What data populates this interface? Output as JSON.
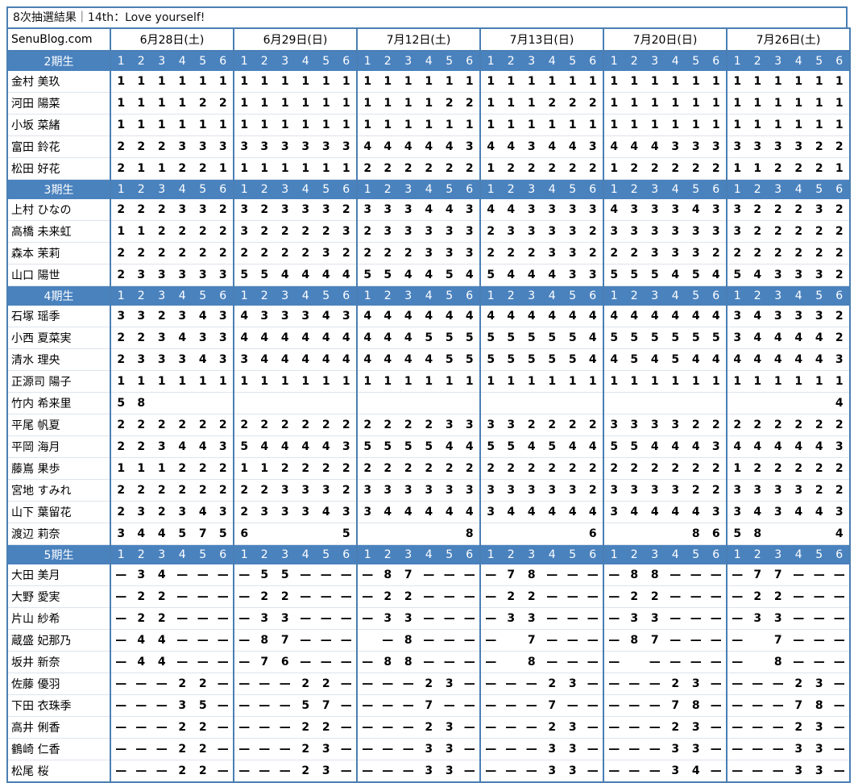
{
  "title": "8次抽選結果｜14th：Love yourself!",
  "site": "SenuBlog.com",
  "dates": [
    "6月28日(土)",
    "6月29日(日)",
    "7月12日(土)",
    "7月13日(日)",
    "7月20日(日)",
    "7月26日(土)"
  ],
  "part_labels": [
    "1",
    "2",
    "3",
    "4",
    "5",
    "6"
  ],
  "highlight_value": "8",
  "groups": [
    {
      "label": "2期生",
      "members": [
        {
          "name": "金村 美玖",
          "v": "111111 111111 111111 111111 111111 111111"
        },
        {
          "name": "河田 陽菜",
          "v": "111122 111111 111122 111222 111111 111111"
        },
        {
          "name": "小坂 菜緒",
          "v": "111111 111111 111111 111111 111111 111111"
        },
        {
          "name": "富田 鈴花",
          "v": "222333 333333 444443 443443 444333 333322"
        },
        {
          "name": "松田 好花",
          "v": "211221 111111 222222 122222 122222 112221"
        }
      ]
    },
    {
      "label": "3期生",
      "members": [
        {
          "name": "上村 ひなの",
          "v": "222332 323332 333443 443333 433343 322232"
        },
        {
          "name": "高橋 未来虹",
          "v": "112222 322223 233333 233332 333333 322222"
        },
        {
          "name": "森本 茉莉",
          "v": "222222 222232 222333 222332 223332 222222"
        },
        {
          "name": "山口 陽世",
          "v": "233333 554444 554454 544433 555454 543332"
        }
      ]
    },
    {
      "label": "4期生",
      "members": [
        {
          "name": "石塚 瑶季",
          "v": "332343 433343 444444 444444 444444 343332"
        },
        {
          "name": "小西 夏菜実",
          "v": "223433 444444 444555 555554 555555 344442"
        },
        {
          "name": "清水 理央",
          "v": "233343 344444 444455 555554 454544 444443"
        },
        {
          "name": "正源司 陽子",
          "v": "111111 111111 111111 111111 111111 111111"
        },
        {
          "name": "竹内 希来里",
          "v": "58____ ______ ______ ______ ______ _____4"
        },
        {
          "name": "平尾 帆夏",
          "v": "222222 222222 222233 332222 333322 222222"
        },
        {
          "name": "平岡 海月",
          "v": "223443 544443 555544 554544 554443 444443"
        },
        {
          "name": "藤嶌 果歩",
          "v": "111222 112222 222222 222222 222222 122222"
        },
        {
          "name": "宮地 すみれ",
          "v": "222222 223332 333333 333332 333322 333322"
        },
        {
          "name": "山下 葉留花",
          "v": "232343 233343 344444 344444 344443 343443"
        },
        {
          "name": "渡辺 莉奈",
          "v": "344575 6____5 _____8 _____6 ____86 58___4"
        }
      ]
    },
    {
      "label": "5期生",
      "members": [
        {
          "name": "大田 美月",
          "v": "-34--- -55--- -87--- -78--- -88--- -77---"
        },
        {
          "name": "大野 愛実",
          "v": "-22--- -22--- -22--- -22--- -22--- -22---"
        },
        {
          "name": "片山 紗希",
          "v": "-22--- -33--- -33--- -33--- -33--- -33---"
        },
        {
          "name": "蔵盛 妃那乃",
          "v": "-44--- -87--- _-8--- -_7--- -87--- -_7---"
        },
        {
          "name": "坂井 新奈",
          "v": "-44--- -76--- -88--- -_8--- -_---- -_8---"
        },
        {
          "name": "佐藤 優羽",
          "v": "---22- ---22- ---23- ---23- ---23- ---23-"
        },
        {
          "name": "下田 衣珠季",
          "v": "---35- ---57- ---7-- ---7-- ---78- ---78-"
        },
        {
          "name": "高井 俐香",
          "v": "---22- ---22- ---23- ---23- ---23- ---23-"
        },
        {
          "name": "鶴崎 仁香",
          "v": "---22- ---23- ---33- ---33- ---33- ---33-"
        },
        {
          "name": "松尾 桜",
          "v": "---22- ---23- ---33- ---33- ---34- ---33-"
        }
      ]
    }
  ]
}
